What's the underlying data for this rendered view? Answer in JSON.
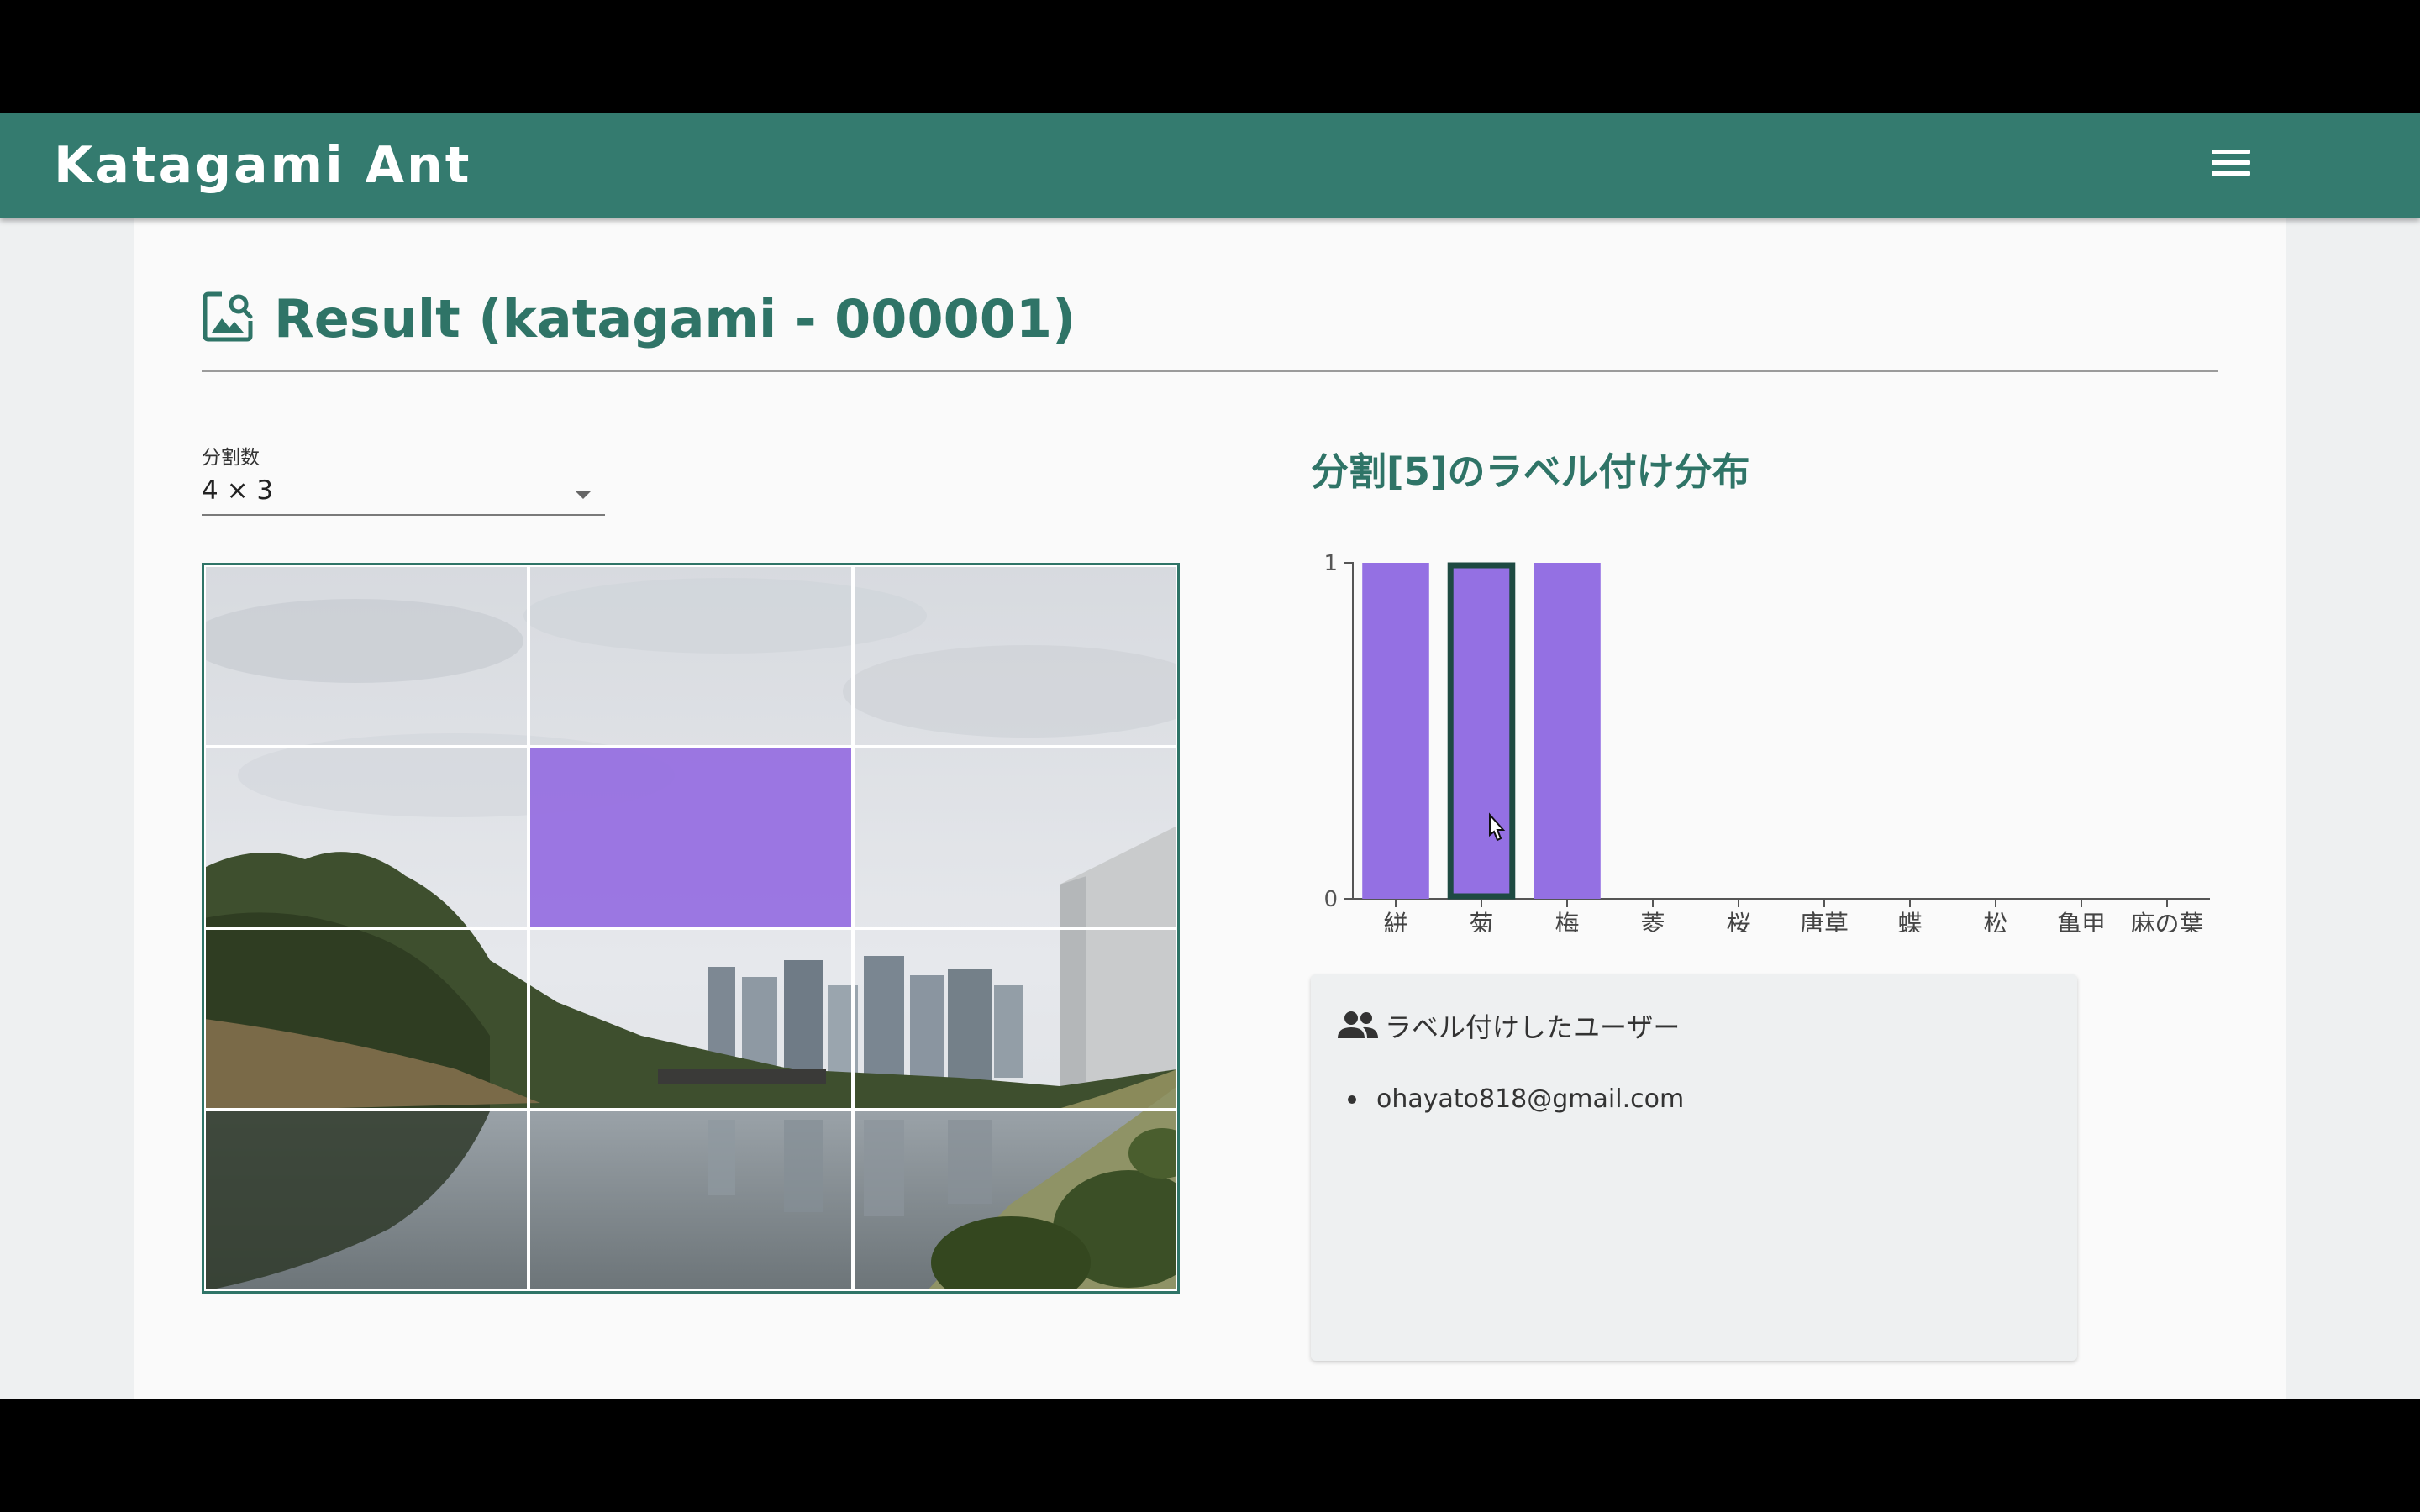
{
  "app": {
    "name": "Katagami Ant"
  },
  "header": {
    "menu_icon": "hamburger-menu-icon"
  },
  "page": {
    "title": "Result (katagami - 000001)",
    "title_icon": "image-search-icon"
  },
  "division": {
    "label": "分割数",
    "value": "4 × 3",
    "columns": 3,
    "rows": 4,
    "selected_cell": 5
  },
  "chart_title": "分割[5]のラベル付け分布",
  "chart_data": {
    "type": "bar",
    "categories": [
      "絣",
      "菊",
      "梅",
      "菱",
      "桜",
      "唐草",
      "蝶",
      "松",
      "亀甲",
      "麻の葉"
    ],
    "values": [
      1,
      1,
      1,
      0,
      0,
      0,
      0,
      0,
      0,
      0
    ],
    "yticks": [
      "0",
      "1"
    ],
    "ylim": [
      0,
      1
    ],
    "highlighted": "菊",
    "bar_color": "#9470e3",
    "highlight_stroke": "#1e4a42"
  },
  "users": {
    "title": "ラベル付けしたユーザー",
    "icon": "people-icon",
    "list": [
      "ohayato818@gmail.com"
    ]
  },
  "colors": {
    "primary": "#347b6f",
    "accent": "#9470e3",
    "title": "#2f7467"
  }
}
